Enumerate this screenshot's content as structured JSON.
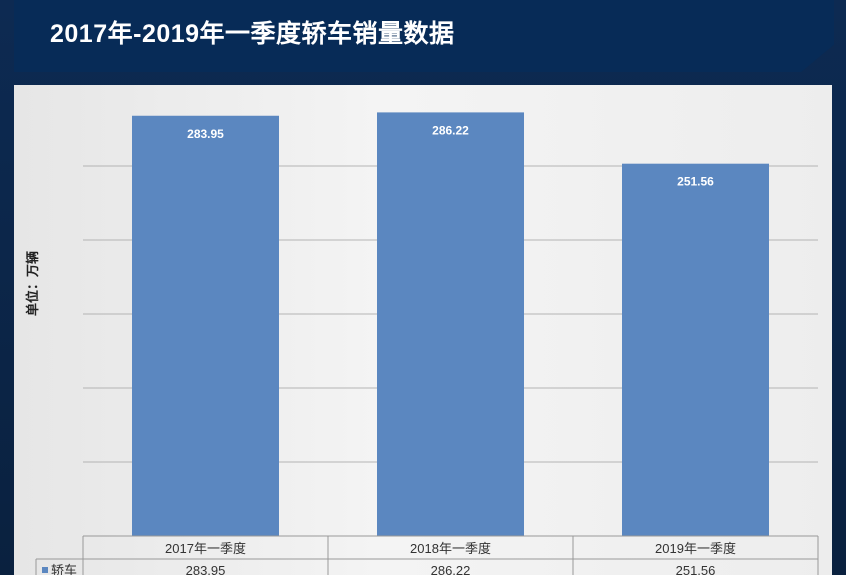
{
  "title": "2017年-2019年一季度轿车销量数据",
  "colors": {
    "bar": "#5b87c0",
    "banner": "#072b57",
    "label": "#ffffff"
  },
  "chart_data": {
    "type": "bar",
    "title": "2017年-2019年一季度轿车销量数据",
    "ylabel": "单位：万辆",
    "xlabel": "",
    "categories": [
      "2017年一季度",
      "2018年一季度",
      "2019年一季度"
    ],
    "series": [
      {
        "name": "轿车",
        "values": [
          283.95,
          286.22,
          251.56
        ]
      }
    ],
    "ylim": [
      0,
      300
    ],
    "grid": true,
    "data_table": true,
    "legend": "data-table"
  }
}
